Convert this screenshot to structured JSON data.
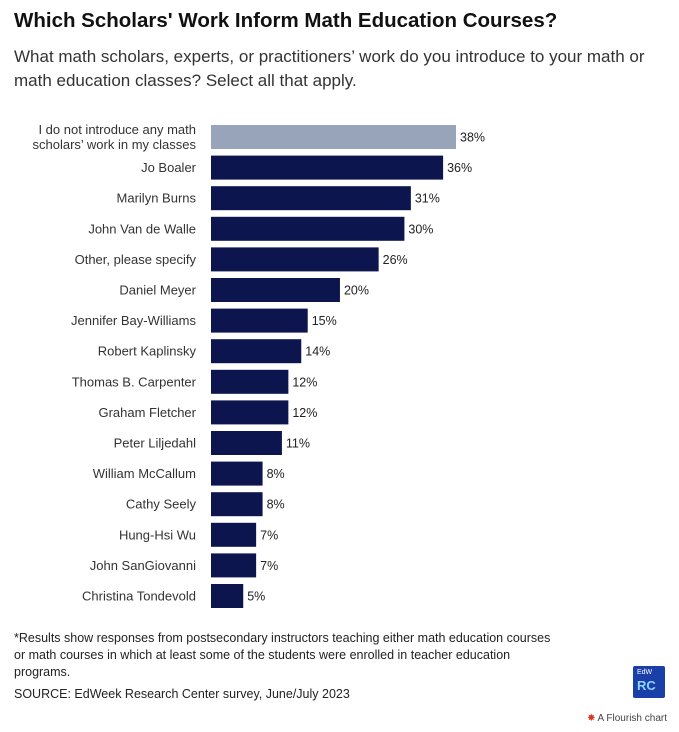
{
  "title": "Which Scholars' Work Inform Math Education Courses?",
  "subtitle": "What math scholars, experts, or practitioners’ work do you introduce to your math or math education classes? Select all that apply.",
  "footnote": "*Results show responses from postsecondary instructors teaching either math education courses or math courses in which at least some of the students were enrolled in teacher education programs.",
  "source": "SOURCE: EdWeek Research Center survey, June/July 2023",
  "logo": {
    "line1": "EdW",
    "line2": "RC"
  },
  "credit": {
    "icon": "flourish-star-icon",
    "text": "A Flourish chart"
  },
  "colors": {
    "highlight": "#97a4b9",
    "bar": "#0c154d"
  },
  "chart_data": {
    "type": "bar",
    "orientation": "horizontal",
    "categories": [
      [
        "I do not introduce any math",
        "scholars’ work in my classes"
      ],
      [
        "Jo Boaler"
      ],
      [
        "Marilyn Burns"
      ],
      [
        "John Van de Walle"
      ],
      [
        "Other, please specify"
      ],
      [
        "Daniel Meyer"
      ],
      [
        "Jennifer Bay-Williams"
      ],
      [
        "Robert Kaplinsky"
      ],
      [
        "Thomas B. Carpenter"
      ],
      [
        "Graham Fletcher"
      ],
      [
        "Peter Liljedahl"
      ],
      [
        "William McCallum"
      ],
      [
        "Cathy Seely"
      ],
      [
        "Hung-Hsi Wu"
      ],
      [
        "John SanGiovanni"
      ],
      [
        "Christina Tondevold"
      ]
    ],
    "values": [
      38,
      36,
      31,
      30,
      26,
      20,
      15,
      14,
      12,
      12,
      11,
      8,
      8,
      7,
      7,
      5
    ],
    "value_labels": [
      "38%",
      "36%",
      "31%",
      "30%",
      "26%",
      "20%",
      "15%",
      "14%",
      "12%",
      "12%",
      "11%",
      "8%",
      "8%",
      "7%",
      "7%",
      "5%"
    ],
    "highlighted_index": 0,
    "xlim": [
      0,
      38
    ],
    "grid": false,
    "legend": "none"
  }
}
